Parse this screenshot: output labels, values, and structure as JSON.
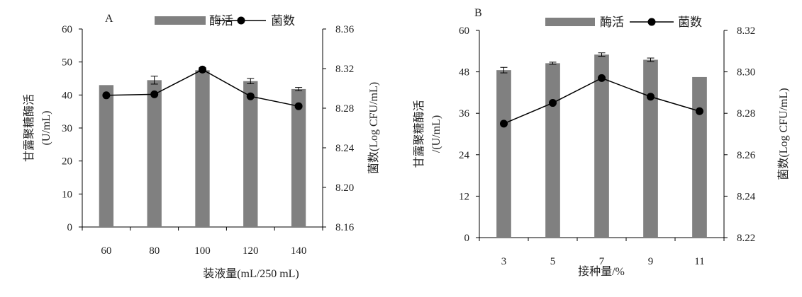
{
  "chart_data": [
    {
      "type": "bar+line",
      "panel_label": "A",
      "categories": [
        "60",
        "80",
        "100",
        "120",
        "140"
      ],
      "xlabel": "装液量(mL/250 mL)",
      "ylabel_left": "甘露聚糖酶活\n(U/mL)",
      "ylabel_right": "菌数(Log CFU/mL)",
      "ylim_left": [
        0,
        60
      ],
      "yticks_left": [
        "0",
        "10",
        "20",
        "30",
        "40",
        "50",
        "60"
      ],
      "ylim_right": [
        8.16,
        8.36
      ],
      "yticks_right": [
        "8.16",
        "8.20",
        "8.24",
        "8.28",
        "8.32",
        "8.36"
      ],
      "legend": {
        "bar": "酶活",
        "line": "菌数",
        "position": "top"
      },
      "series": [
        {
          "name": "酶活",
          "kind": "bar",
          "axis": "left",
          "color": "#808080",
          "values": [
            43.0,
            44.5,
            47.5,
            44.2,
            41.8
          ],
          "errors": [
            0.0,
            1.2,
            0.5,
            0.8,
            0.5
          ]
        },
        {
          "name": "菌数",
          "kind": "line",
          "axis": "right",
          "color": "#000000",
          "values": [
            8.293,
            8.294,
            8.319,
            8.292,
            8.282
          ],
          "errors": [
            0.0,
            0.0,
            0.002,
            0.0,
            0.0
          ]
        }
      ]
    },
    {
      "type": "bar+line",
      "panel_label": "B",
      "categories": [
        "3",
        "5",
        "7",
        "9",
        "11"
      ],
      "xlabel": "接种量/%",
      "ylabel_left": "甘露聚糖酶活\n/(U/mL)",
      "ylabel_right": "菌数(Log CFU/mL)",
      "ylim_left": [
        0,
        60
      ],
      "yticks_left": [
        "0",
        "12",
        "24",
        "36",
        "48",
        "60"
      ],
      "ylim_right": [
        8.22,
        8.32
      ],
      "yticks_right": [
        "8.22",
        "8.24",
        "8.26",
        "8.28",
        "8.30",
        "8.32"
      ],
      "legend": {
        "bar": "酶活",
        "line": "菌数",
        "position": "top"
      },
      "series": [
        {
          "name": "酶活",
          "kind": "bar",
          "axis": "left",
          "color": "#808080",
          "values": [
            48.5,
            50.5,
            53.0,
            51.5,
            46.5
          ],
          "errors": [
            0.8,
            0.3,
            0.5,
            0.5,
            0.0
          ]
        },
        {
          "name": "菌数",
          "kind": "line",
          "axis": "right",
          "color": "#000000",
          "values": [
            8.275,
            8.285,
            8.297,
            8.288,
            8.281
          ],
          "errors": [
            0.0,
            0.0,
            0.0,
            0.0,
            0.0
          ]
        }
      ]
    }
  ]
}
